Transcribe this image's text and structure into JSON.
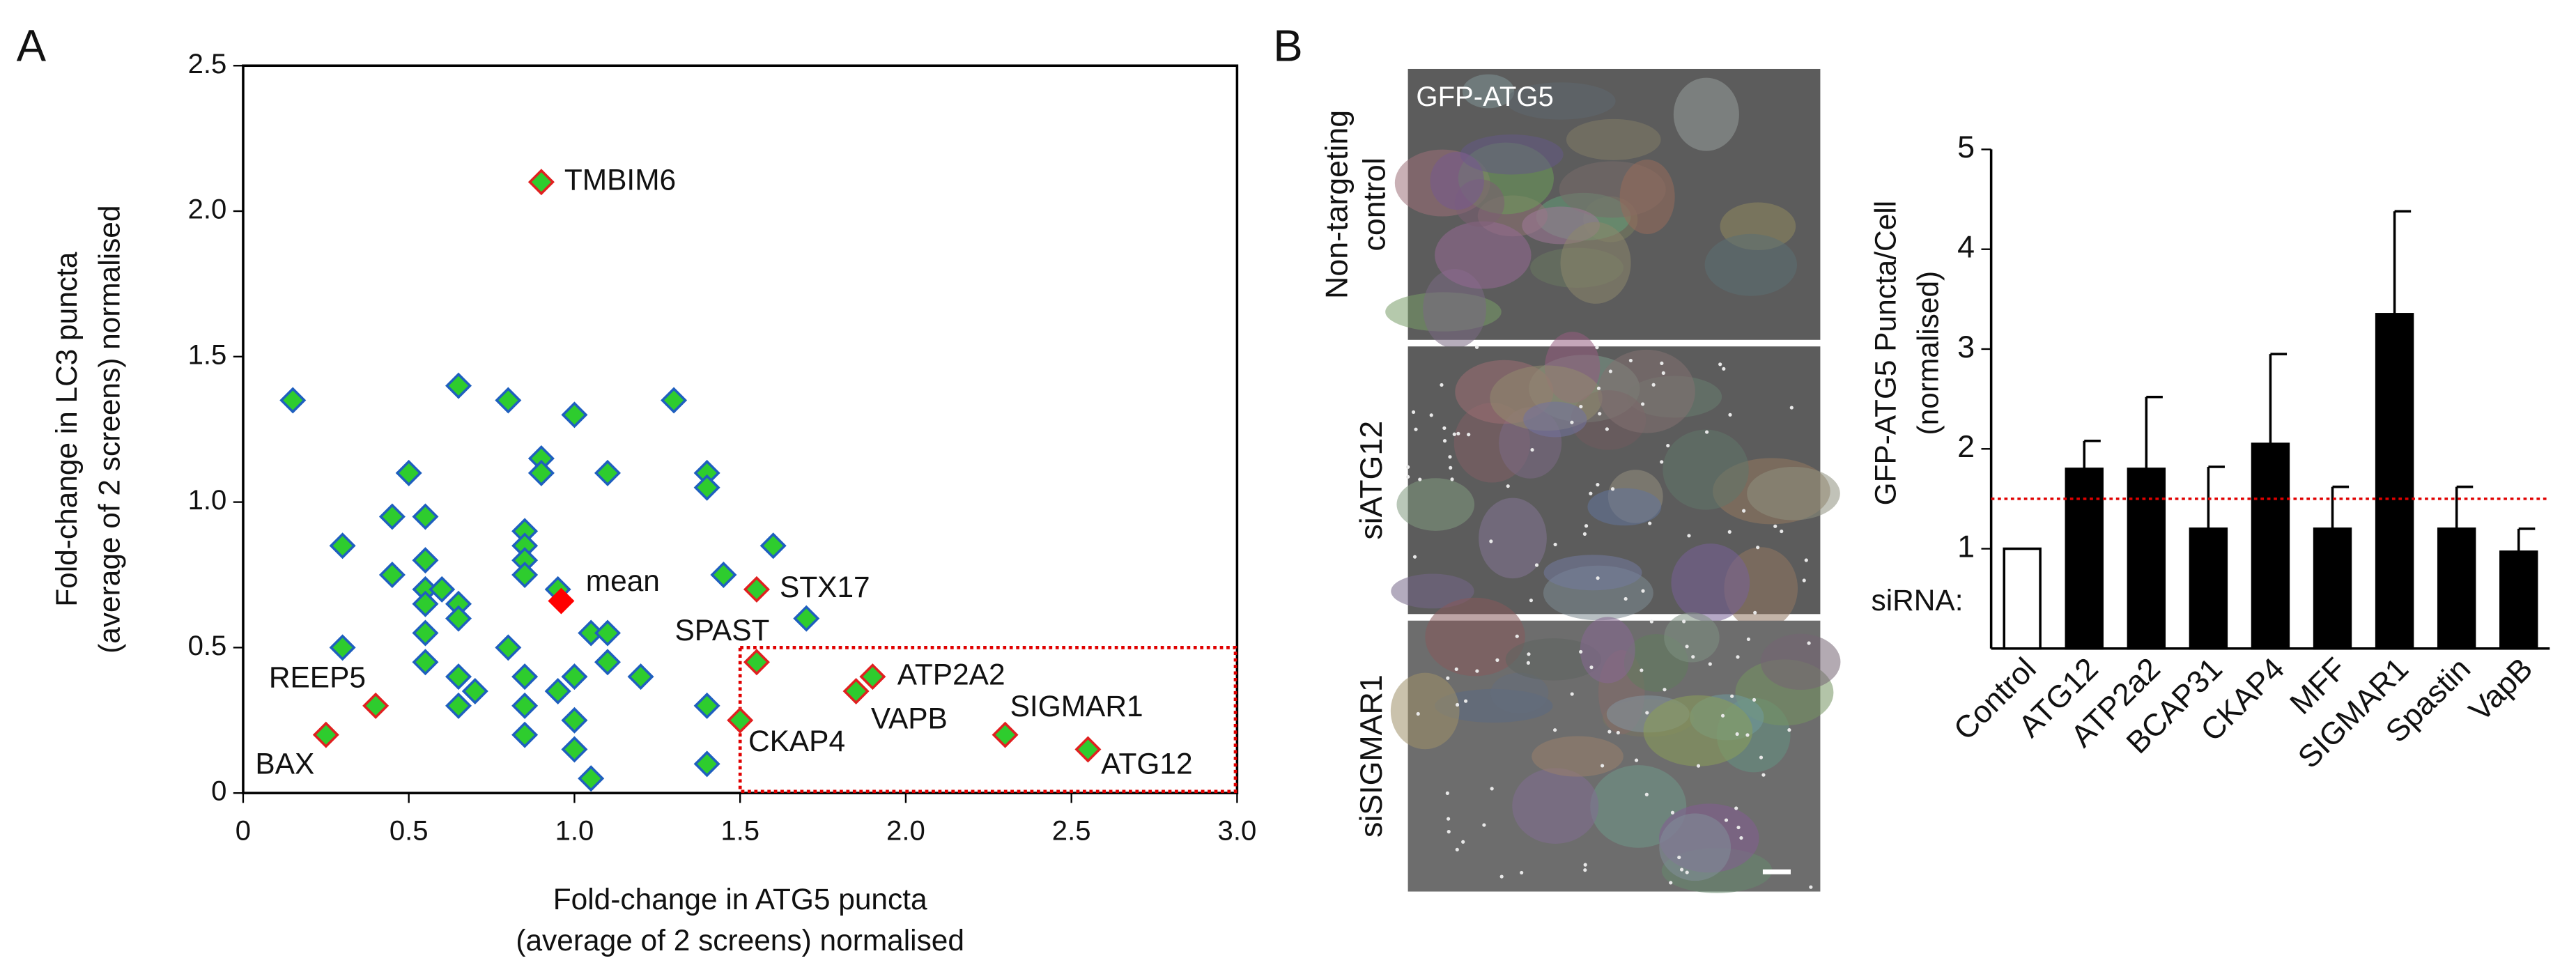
{
  "panel_labels": [
    "A",
    "B"
  ],
  "images": {
    "caption": "GFP-ATG5",
    "rows": [
      [
        "Non-targeting",
        "control"
      ],
      [
        "siATG12"
      ],
      [
        "siSIGMAR1"
      ]
    ]
  },
  "chart_data": [
    {
      "type": "scatter",
      "xlabel": [
        "Fold-change in ATG5 puncta",
        "(average of 2 screens) normalised"
      ],
      "ylabel": [
        "Fold-change in LC3 puncta",
        "(average of 2 screens) normalised"
      ],
      "xlim": [
        0,
        3
      ],
      "ylim": [
        0,
        2.5
      ],
      "xticks": [
        0,
        0.5,
        {
          "value": 1,
          "label": "1.0"
        },
        1.5,
        {
          "value": 2,
          "label": "2.0"
        },
        2.5,
        {
          "value": 3,
          "label": "3.0"
        }
      ],
      "yticks": [
        0,
        0.5,
        {
          "value": 1,
          "label": "1.0"
        },
        1.5,
        {
          "value": 2,
          "label": "2.0"
        },
        2.5
      ],
      "region": {
        "x": [
          1.5,
          3
        ],
        "y": [
          0,
          0.5
        ],
        "color": "#e00000"
      },
      "series": [
        {
          "color": "#2ecc2e",
          "edgecolor": "#1f5fbf",
          "x": [
            0.15,
            0.3,
            0.3,
            0.45,
            0.45,
            0.5,
            0.55,
            0.55,
            0.55,
            0.55,
            0.55,
            0.55,
            0.6,
            0.65,
            0.65,
            0.65,
            0.65,
            0.65,
            0.7,
            0.8,
            0.8,
            0.85,
            0.85,
            0.85,
            0.85,
            0.85,
            0.85,
            0.85,
            0.9,
            0.9,
            0.95,
            0.95,
            1.0,
            1.0,
            1.0,
            1.0,
            1.05,
            1.05,
            1.1,
            1.1,
            1.1,
            1.2,
            1.3,
            1.4,
            1.4,
            1.4,
            1.4,
            1.45,
            1.6,
            1.7
          ],
          "values": [
            1.35,
            0.85,
            0.5,
            0.75,
            0.95,
            1.1,
            0.95,
            0.8,
            0.7,
            0.65,
            0.55,
            0.45,
            0.7,
            0.65,
            0.6,
            1.4,
            0.4,
            0.3,
            0.35,
            0.5,
            1.35,
            0.9,
            0.85,
            0.8,
            0.75,
            0.4,
            0.3,
            0.2,
            1.15,
            1.1,
            0.7,
            0.35,
            1.3,
            0.4,
            0.25,
            0.15,
            0.05,
            0.55,
            1.1,
            0.55,
            0.45,
            0.4,
            1.35,
            1.1,
            1.05,
            0.3,
            0.1,
            0.75,
            0.85,
            0.6
          ]
        },
        {
          "color": "#2ecc2e",
          "edgecolor": "#e02020",
          "labels": [
            "TMBIM6",
            "STX17",
            "SPAST",
            "REEP5",
            "BAX",
            "CKAP4",
            "ATP2A2",
            "VAPB",
            "SIGMAR1",
            "ATG12"
          ],
          "x": [
            0.9,
            1.55,
            1.55,
            0.4,
            0.25,
            1.5,
            1.9,
            1.85,
            2.3,
            2.55
          ],
          "values": [
            2.1,
            0.7,
            0.45,
            0.3,
            0.2,
            0.25,
            0.4,
            0.35,
            0.2,
            0.15
          ]
        },
        {
          "color": "#ff0000",
          "edgecolor": "#ff0000",
          "labels": [
            "mean"
          ],
          "x": [
            0.96
          ],
          "values": [
            0.66
          ]
        }
      ]
    },
    {
      "type": "bar",
      "ylabel": [
        "GFP-ATG5 Puncta/Cell",
        "(normalised)"
      ],
      "annotation": "siRNA:",
      "categories": [
        "Control",
        "ATG12",
        "ATP2a2",
        "BCAP31",
        "CKAP4",
        "MFF",
        "SIGMAR1",
        "Spastin",
        "VapB"
      ],
      "values": [
        1.0,
        1.8,
        1.8,
        1.2,
        2.05,
        1.2,
        3.35,
        1.2,
        0.97
      ],
      "errors": [
        null,
        0.28,
        0.72,
        0.62,
        0.9,
        0.42,
        1.03,
        0.42,
        0.23
      ],
      "colors": [
        "#ffffff",
        "#000000",
        "#000000",
        "#000000",
        "#000000",
        "#000000",
        "#000000",
        "#000000",
        "#000000"
      ],
      "edgecolor": "#000000",
      "ylim": [
        0,
        5
      ],
      "yticks": [
        1,
        2,
        3,
        4,
        5
      ],
      "reference_line": {
        "value": 1.5,
        "color": "#e00000"
      }
    }
  ]
}
